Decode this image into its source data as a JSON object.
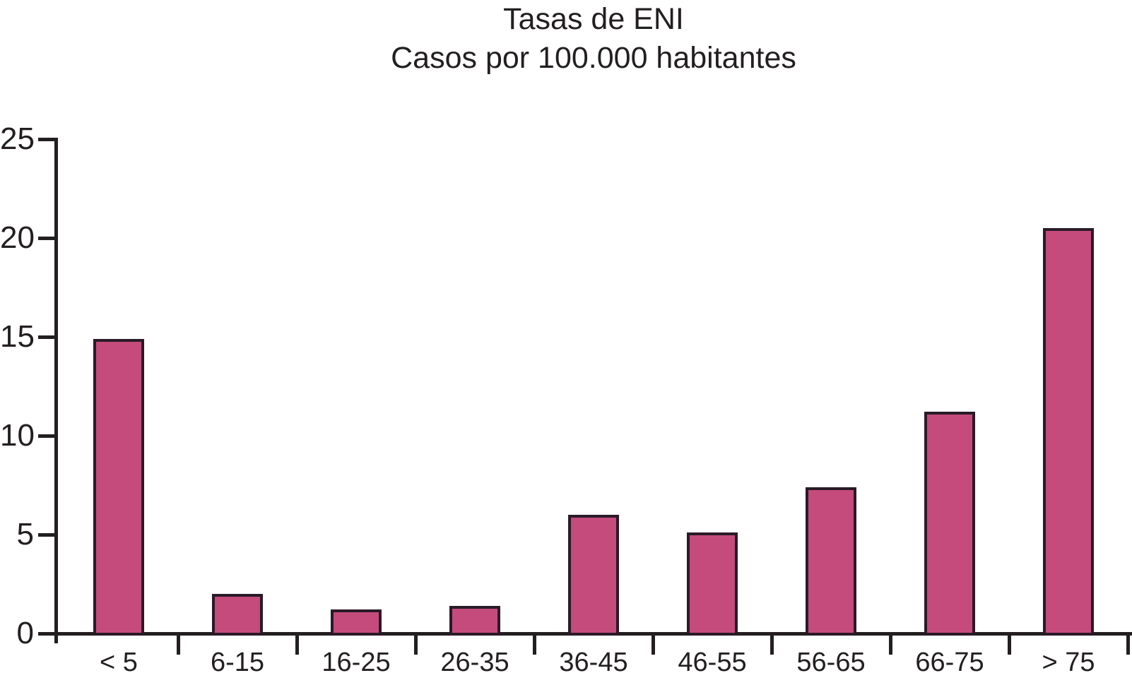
{
  "chart_data": {
    "type": "bar",
    "title": "Tasas de ENI",
    "subtitle": "Casos por 100.000 habitantes",
    "categories": [
      "< 5",
      "6-15",
      "16-25",
      "26-35",
      "36-45",
      "46-55",
      "56-65",
      "66-75",
      "> 75"
    ],
    "values": [
      14.9,
      2.0,
      1.2,
      1.4,
      6.0,
      5.1,
      7.4,
      11.2,
      20.5
    ],
    "xlabel": "",
    "ylabel": "",
    "ylim": [
      0,
      25
    ],
    "yticks": [
      0,
      5,
      10,
      15,
      20,
      25
    ],
    "grid": false,
    "legend": false,
    "colors": {
      "bar_fill": "#c44b7c",
      "bar_border": "#2a1a28",
      "axis_and_text": "#231f20",
      "background": "#ffffff"
    }
  }
}
